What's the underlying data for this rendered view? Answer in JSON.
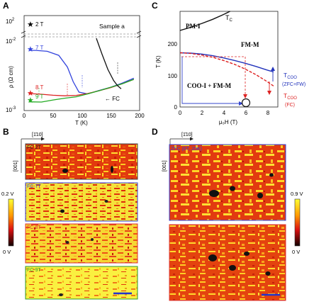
{
  "panels": {
    "A": "A",
    "B": "B",
    "C": "C",
    "D": "D"
  },
  "panelA": {
    "sample_label": "Sample a",
    "ylabel": "ρ (Ω cm)",
    "xlabel": "T (K)",
    "fc_label": "← FC",
    "series_labels": {
      "s2T": "2 T",
      "s7T": "7 T",
      "s8T": "8 T",
      "s9T": "9 T"
    }
  },
  "panelB": {
    "direction_top": "[1̄10]",
    "direction_side": "[001]",
    "scale_top": "0.2 V",
    "scale_bottom": "0 V",
    "maps": [
      {
        "label": "FC-2T",
        "color": "#222222"
      },
      {
        "label": "FC-7T",
        "color": "#3333dd"
      },
      {
        "label": "FC-8T",
        "color": "#dd3333"
      },
      {
        "label": "FC-9T",
        "color": "#2a9a2a"
      }
    ]
  },
  "panelC": {
    "ylabel": "T (K)",
    "xlabel": "μ₀H (T)",
    "pm_label": "PM-I",
    "tc_label": "T",
    "tc_sub": "C",
    "fm_label": "FM-M",
    "coo_label": "COO-I + FM-M",
    "tcoo_label": "T",
    "tcoo_sub": "COO",
    "zfc_fw": "(ZFC+FW)",
    "fc": "(FC)"
  },
  "panelD": {
    "direction_top": "[1̄10]",
    "direction_side": "[001]",
    "scale_top": "0.9 V",
    "scale_bottom": "0 V",
    "maps": [
      {
        "label": "ZFC (6T, 20K)",
        "color": "#3333dd"
      },
      {
        "label": "FC (6T, 20K)",
        "color": "#dd3333"
      }
    ]
  },
  "chart_data": [
    {
      "type": "line",
      "panel": "A",
      "xlabel": "T (K)",
      "ylabel": "ρ (Ω cm)",
      "xlim": [
        0,
        200
      ],
      "ylim_lower": [
        0.001,
        0.01
      ],
      "yscale": "log",
      "yticks_lower": [
        "10⁻³",
        "10⁻²"
      ],
      "yticks_upper": [
        "10²"
      ],
      "xticks": [
        0,
        50,
        100,
        150,
        200
      ],
      "series": [
        {
          "name": "2 T",
          "color": "#222222",
          "x": [
            8
          ],
          "y": [
            100
          ]
        },
        {
          "name": "7 T",
          "color": "#3344dd",
          "x": [
            8,
            20,
            40,
            60,
            75,
            85,
            95,
            110,
            130,
            150,
            170,
            190
          ],
          "y": [
            0.0068,
            0.0068,
            0.0066,
            0.0058,
            0.004,
            0.0025,
            0.0018,
            0.0017,
            0.0019,
            0.0021,
            0.0024,
            0.0028
          ]
        },
        {
          "name": "8 T",
          "color": "#dd2222",
          "x": [
            8,
            30,
            50,
            70,
            90,
            110,
            130,
            150,
            170,
            190
          ],
          "y": [
            0.00172,
            0.00168,
            0.00163,
            0.0016,
            0.00162,
            0.00172,
            0.00188,
            0.00208,
            0.00235,
            0.0027
          ]
        },
        {
          "name": "9 T",
          "color": "#22aa22",
          "x": [
            8,
            30,
            50,
            70,
            90,
            110,
            130,
            150,
            170,
            190
          ],
          "y": [
            0.00132,
            0.00131,
            0.0014,
            0.00148,
            0.00155,
            0.0017,
            0.00188,
            0.0021,
            0.00235,
            0.0027
          ]
        },
        {
          "name": "2 T upturn",
          "color": "#111111",
          "x": [
            125,
            135,
            145,
            155,
            162,
            168
          ],
          "y": [
            0.01,
            0.006,
            0.0037,
            0.0026,
            0.0022,
            0.002
          ]
        }
      ]
    },
    {
      "type": "line",
      "panel": "C",
      "xlabel": "μ₀H (T)",
      "ylabel": "T (K)",
      "xlim": [
        0,
        9
      ],
      "ylim": [
        0,
        300
      ],
      "xticks": [
        0,
        2,
        4,
        6,
        8
      ],
      "yticks": [
        0,
        100,
        200
      ],
      "series": [
        {
          "name": "Tc",
          "color": "#111111",
          "x": [
            0,
            1,
            2,
            3,
            4,
            4.6
          ],
          "y": [
            240,
            250,
            262,
            275,
            290,
            300
          ]
        },
        {
          "name": "Tcoo (ZFC+FW)",
          "color": "#2233bb",
          "x": [
            0,
            1,
            2,
            3,
            4,
            5,
            6,
            7,
            8,
            8.6
          ],
          "y": [
            170,
            169,
            166,
            161,
            154,
            146,
            137,
            127,
            116,
            110
          ]
        },
        {
          "name": "Tcoo (FC)",
          "color": "#dd2222",
          "x": [
            0,
            1,
            2,
            3,
            4,
            5,
            6,
            7,
            8,
            8.6
          ],
          "y": [
            170,
            168,
            163,
            156,
            146,
            134,
            119,
            101,
            80,
            66
          ]
        }
      ]
    }
  ]
}
